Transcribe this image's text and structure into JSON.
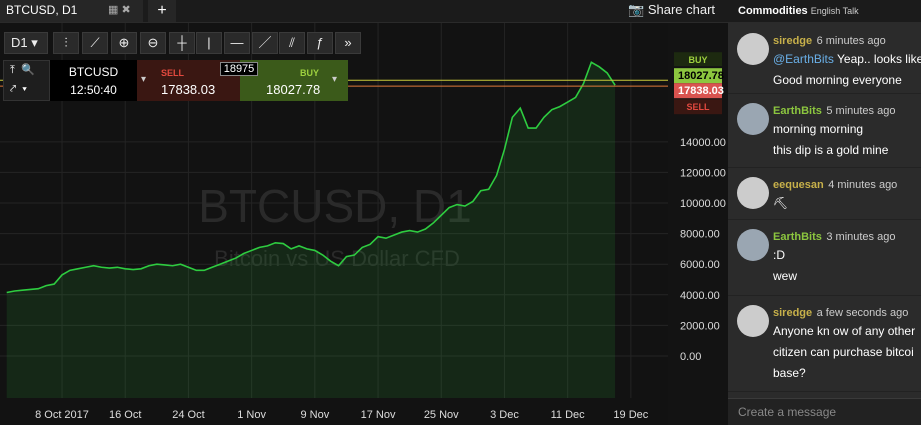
{
  "tabs": {
    "active": "BTCUSD, D1",
    "share": "Share chart"
  },
  "toolbar": {
    "timeframe": "D1"
  },
  "ticket": {
    "symbol": "BTCUSD",
    "time": "12:50:40",
    "sell_label": "SELL",
    "quantity": "18975",
    "buy_label": "BUY"
  },
  "quote": {
    "sell": 17838.03,
    "buy": 18027.78,
    "sell_label": "SELL",
    "buy_label": "BUY"
  },
  "chart_data": {
    "type": "line",
    "watermark_title": "BTCUSD, D1",
    "watermark_subtitle": "Bitcoin vs US Dollar CFD",
    "color": "#2ecc40",
    "values": [
      4150,
      4250,
      4300,
      4350,
      4400,
      4600,
      4700,
      5300,
      5600,
      5700,
      5800,
      5900,
      5800,
      5750,
      5800,
      5700,
      5650,
      5700,
      5900,
      6000,
      5950,
      5900,
      6000,
      5800,
      5600,
      5600,
      5800,
      6000,
      6200,
      6400,
      6700,
      6900,
      7100,
      7200,
      7400,
      7350,
      7000,
      7200,
      7000,
      6900,
      6600,
      6200,
      5900,
      6500,
      6600,
      7100,
      7300,
      7800,
      7700,
      7900,
      8100,
      8200,
      8100,
      8300,
      8700,
      9200,
      9700,
      9900,
      9800,
      10100,
      10800,
      10900,
      11800,
      13500,
      15600,
      16200,
      14900,
      14900,
      15600,
      16100,
      16300,
      16600,
      16900,
      17800,
      19200,
      18900,
      18500,
      17700
    ],
    "xlim": [
      -0.85,
      83.7
    ],
    "xticks": [
      {
        "value": 7,
        "label": "8 Oct 2017"
      },
      {
        "value": 15,
        "label": "16 Oct"
      },
      {
        "value": 23,
        "label": "24 Oct"
      },
      {
        "value": 31,
        "label": "1 Nov"
      },
      {
        "value": 39,
        "label": "9 Nov"
      },
      {
        "value": 47,
        "label": "17 Nov"
      },
      {
        "value": 55,
        "label": "25 Nov"
      },
      {
        "value": 63,
        "label": "3 Dec"
      },
      {
        "value": 71,
        "label": "11 Dec"
      },
      {
        "value": 79,
        "label": "19 Dec"
      }
    ],
    "ylim": [
      -2745,
      21570
    ],
    "yticks": [
      {
        "value": 0,
        "label": "0.00"
      },
      {
        "value": 2000,
        "label": "2000.00"
      },
      {
        "value": 4000,
        "label": "4000.00"
      },
      {
        "value": 6000,
        "label": "6000.00"
      },
      {
        "value": 8000,
        "label": "8000.00"
      },
      {
        "value": 10000,
        "label": "10000.00"
      },
      {
        "value": 12000,
        "label": "12000.00"
      },
      {
        "value": 14000,
        "label": "14000.00"
      }
    ],
    "grid": true
  },
  "chat": {
    "title": "Commodities",
    "room": "English Talk",
    "input_placeholder": "Create a message",
    "messages": [
      {
        "user": "siredge",
        "time": "6 minutes ago",
        "mention": "@EarthBits",
        "lines": [
          "Yeap.. looks like",
          "Good morning everyone"
        ]
      },
      {
        "user": "EarthBits",
        "time": "5 minutes ago",
        "lines": [
          "morning morning",
          "this dip is a gold mine"
        ]
      },
      {
        "user": "eequesan",
        "time": "4 minutes ago",
        "lines": [
          "⛏"
        ]
      },
      {
        "user": "EarthBits",
        "time": "3 minutes ago",
        "lines": [
          ":D",
          "wew"
        ]
      },
      {
        "user": "siredge",
        "time": "a few seconds ago",
        "lines": [
          "Anyone kn ow of any other",
          "citizen can purchase bitcoi",
          "base?"
        ]
      }
    ]
  }
}
